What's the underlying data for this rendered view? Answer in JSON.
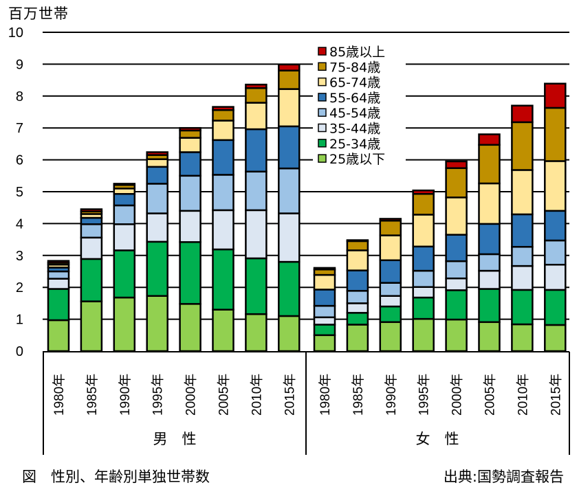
{
  "chart_data": {
    "type": "bar",
    "stacked": true,
    "title": "図　性別、年齢別単独世帯数",
    "ylabel": "百万世帯",
    "xlabel": "",
    "ylim": [
      0,
      10
    ],
    "yticks": [
      0,
      1,
      2,
      3,
      4,
      5,
      6,
      7,
      8,
      9,
      10
    ],
    "grid": true,
    "legend_position": "top-center",
    "groups": [
      {
        "label": "男　性",
        "categories": [
          "1980年",
          "1985年",
          "1990年",
          "1995年",
          "2000年",
          "2005年",
          "2010年",
          "2015年"
        ]
      },
      {
        "label": "女　性",
        "categories": [
          "1980年",
          "1985年",
          "1990年",
          "1995年",
          "2000年",
          "2005年",
          "2010年",
          "2015年"
        ]
      }
    ],
    "series": [
      {
        "name": "25歳以下",
        "color": "#92d050",
        "male": [
          0.97,
          1.56,
          1.68,
          1.73,
          1.48,
          1.3,
          1.16,
          1.1
        ],
        "female": [
          0.5,
          0.83,
          0.91,
          1.01,
          0.99,
          0.91,
          0.84,
          0.82
        ]
      },
      {
        "name": "25-34歳",
        "color": "#00b050",
        "male": [
          0.98,
          1.33,
          1.48,
          1.7,
          1.94,
          1.89,
          1.75,
          1.7
        ],
        "female": [
          0.33,
          0.37,
          0.49,
          0.67,
          0.92,
          1.04,
          1.08,
          1.1
        ]
      },
      {
        "name": "35-44歳",
        "color": "#dce6f2",
        "male": [
          0.32,
          0.67,
          0.82,
          0.89,
          0.98,
          1.23,
          1.51,
          1.52
        ],
        "female": [
          0.23,
          0.3,
          0.33,
          0.33,
          0.37,
          0.57,
          0.75,
          0.79
        ]
      },
      {
        "name": "45-54歳",
        "color": "#9dc3e6",
        "male": [
          0.23,
          0.42,
          0.59,
          0.93,
          1.1,
          1.11,
          1.21,
          1.41
        ],
        "female": [
          0.36,
          0.39,
          0.41,
          0.51,
          0.54,
          0.52,
          0.6,
          0.76
        ]
      },
      {
        "name": "55-64歳",
        "color": "#2e75b6",
        "male": [
          0.12,
          0.2,
          0.36,
          0.53,
          0.74,
          1.09,
          1.33,
          1.32
        ],
        "female": [
          0.51,
          0.64,
          0.71,
          0.76,
          0.83,
          0.95,
          1.02,
          0.93
        ]
      },
      {
        "name": "65-74歳",
        "color": "#ffe699",
        "male": [
          0.09,
          0.12,
          0.17,
          0.24,
          0.45,
          0.61,
          0.83,
          1.17
        ],
        "female": [
          0.46,
          0.63,
          0.78,
          1.0,
          1.17,
          1.27,
          1.39,
          1.56
        ]
      },
      {
        "name": "75-84歳",
        "color": "#bf9000",
        "male": [
          0.06,
          0.08,
          0.11,
          0.13,
          0.23,
          0.33,
          0.46,
          0.58
        ],
        "female": [
          0.17,
          0.29,
          0.46,
          0.65,
          0.92,
          1.21,
          1.5,
          1.67
        ]
      },
      {
        "name": "85歳以上",
        "color": "#c00000",
        "male": [
          0.06,
          0.07,
          0.04,
          0.09,
          0.08,
          0.1,
          0.11,
          0.19
        ],
        "female": [
          0.05,
          0.03,
          0.06,
          0.11,
          0.21,
          0.33,
          0.52,
          0.76
        ]
      }
    ],
    "legend_order": [
      "85歳以上",
      "75-84歳",
      "65-74歳",
      "55-64歳",
      "45-54歳",
      "35-44歳",
      "25-34歳",
      "25歳以下"
    ]
  },
  "labels": {
    "unit": "百万世帯",
    "caption": "図　性別、年齢別単独世帯数",
    "source": "出典:国勢調査報告"
  }
}
